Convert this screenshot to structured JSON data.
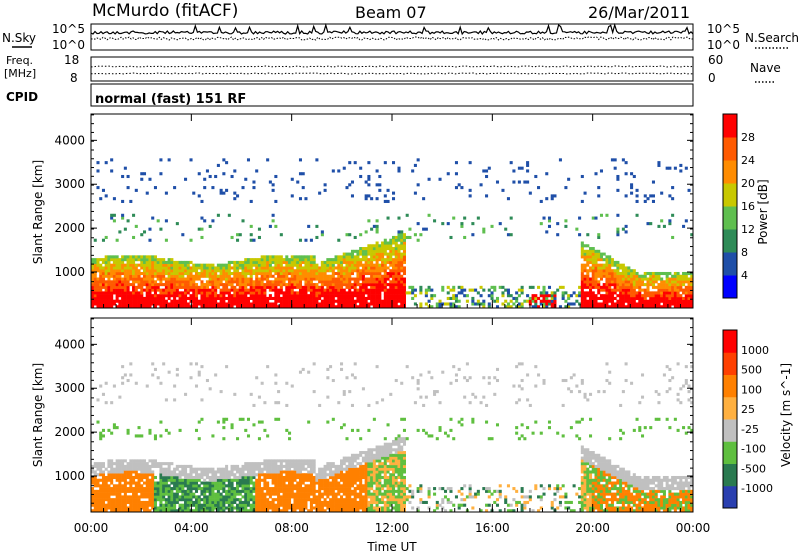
{
  "header": {
    "station": "McMurdo (fitACF)",
    "beam": "Beam 07",
    "date": "26/Mar/2011"
  },
  "top_panels": {
    "nsky_label": "N.Sky",
    "nsky_ticks": [
      "10^5",
      "10^0"
    ],
    "nsearch_label": "N.Search",
    "freq_label_1": "Freq.",
    "freq_label_2": "[MHz]",
    "freq_ticks": [
      "18",
      "8"
    ],
    "nave_label": "Nave",
    "nave_ticks": [
      "60",
      "0"
    ],
    "cpid_label": "CPID",
    "cpid_value": "normal (fast) 151 RF"
  },
  "chart_data": [
    {
      "type": "heatmap",
      "title": "",
      "xlabel": "",
      "ylabel": "Slant Range [km]",
      "xlim": [
        0,
        24
      ],
      "ylim": [
        180,
        4600
      ],
      "yticks": [
        1000,
        2000,
        3000,
        4000
      ],
      "colorbar": {
        "label": "Power [dB]",
        "ticks": [
          4,
          8,
          12,
          16,
          20,
          24,
          28
        ],
        "range": [
          0,
          32
        ],
        "colors": [
          "#0000ff",
          "#1f4fa8",
          "#2e8b57",
          "#5fbf4f",
          "#c8c800",
          "#ff8c00",
          "#ff5a00",
          "#ff0000"
        ]
      }
    },
    {
      "type": "heatmap",
      "title": "",
      "xlabel": "Time UT",
      "ylabel": "Slant Range [km]",
      "xlim": [
        0,
        24
      ],
      "ylim": [
        180,
        4600
      ],
      "xticks": [
        "00:00",
        "04:00",
        "08:00",
        "12:00",
        "16:00",
        "20:00",
        "00:00"
      ],
      "yticks": [
        1000,
        2000,
        3000,
        4000
      ],
      "colorbar": {
        "label": "Velocity [m s^-1]",
        "ticks": [
          "1000",
          "500",
          "100",
          "25",
          "-25",
          "-100",
          "-500",
          "-1000"
        ],
        "colors": [
          "#2a3fb0",
          "#2a7a50",
          "#5fbf3f",
          "#c0c0c0",
          "#ffb040",
          "#ff8000",
          "#ff4000",
          "#ff0000"
        ]
      }
    }
  ]
}
